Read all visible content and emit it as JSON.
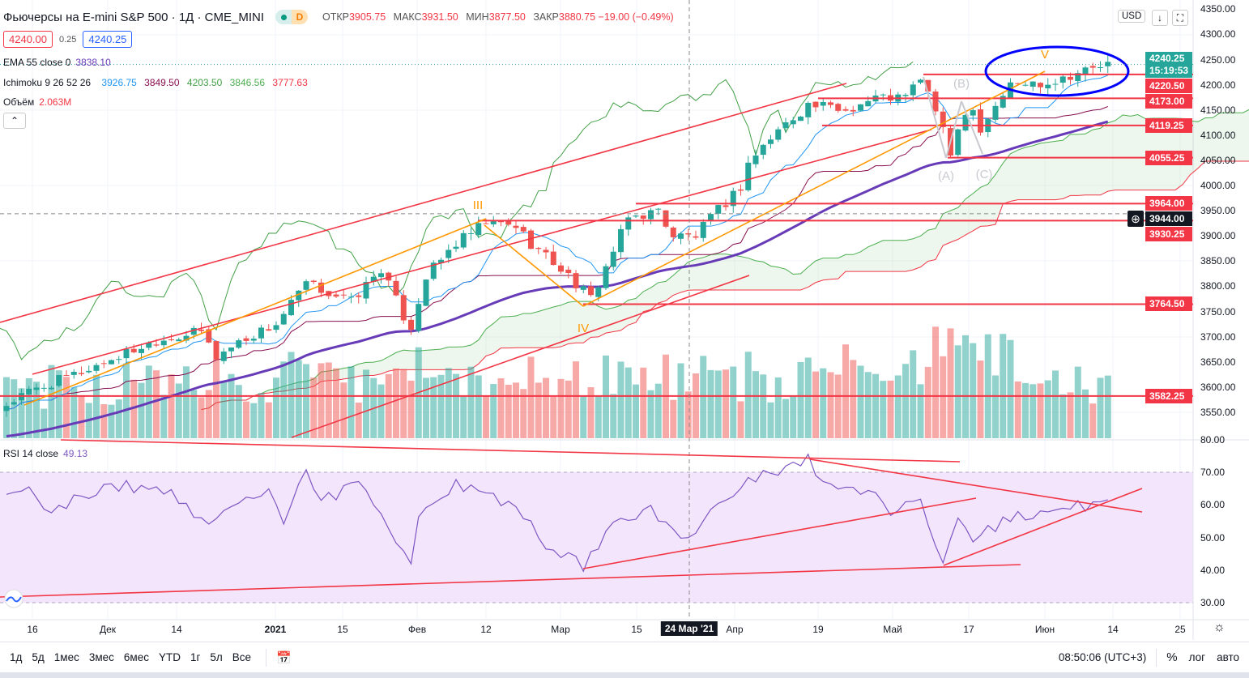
{
  "header": {
    "symbol_title": "Фьючерсы на E-mini S&P 500 · 1Д · CME_MINI",
    "session_badge": "D",
    "ohlc": [
      {
        "label": "ОТКР",
        "value": "3905.75"
      },
      {
        "label": "МАКС",
        "value": "3931.50"
      },
      {
        "label": "МИН",
        "value": "3877.50"
      },
      {
        "label": "ЗАКР",
        "value": "3880.75 −19.00 (−0.49%)"
      }
    ],
    "sell_price": "4240.00",
    "spread": "0.25",
    "buy_price": "4240.25",
    "currency": "USD"
  },
  "indicators": {
    "ema": {
      "label": "EMA 55 close 0",
      "value": "3838.10"
    },
    "ichimoku": {
      "label": "Ichimoku 9 26 52 26",
      "values": [
        "3926.75",
        "3849.50",
        "4203.50",
        "3846.56",
        "3777.63"
      ]
    },
    "volume": {
      "label": "Объём",
      "value": "2.063M"
    },
    "rsi": {
      "label": "RSI 14 close",
      "value": "49.13"
    }
  },
  "colors": {
    "up": "#26a69a",
    "down": "#ef5350",
    "ema": "#673ab7",
    "tenkan": "#2196f3",
    "kijun": "#880e4f",
    "chikou": "#43a047",
    "level": "#f23645",
    "rsi": "#7e57c2",
    "annotation": "#0000ff"
  },
  "price_axis": {
    "ticks": [
      "4350.00",
      "4300.00",
      "4250.00",
      "4200.00",
      "4150.00",
      "4100.00",
      "4050.00",
      "4000.00",
      "3950.00",
      "3900.00",
      "3850.00",
      "3800.00",
      "3750.00",
      "3700.00",
      "3650.00",
      "3600.00",
      "3550.00"
    ],
    "last_price": "4240.25",
    "countdown": "15:19:53",
    "crosshair_price": "3944.00",
    "levels": [
      "4220.50",
      "4173.00",
      "4119.25",
      "4055.25",
      "3964.00",
      "3930.25",
      "3764.50",
      "3582.25"
    ]
  },
  "rsi_axis": {
    "ticks": [
      "80.00",
      "70.00",
      "60.00",
      "50.00",
      "40.00",
      "30.00"
    ]
  },
  "time_axis": {
    "ticks": [
      "16",
      "Дек",
      "14",
      "2021",
      "15",
      "Фев",
      "12",
      "Мар",
      "15",
      "Апр",
      "19",
      "Май",
      "17",
      "Июн",
      "14",
      "25"
    ],
    "crosshair_date": "24 Мар '21"
  },
  "wave_labels": [
    "III",
    "IV",
    "V",
    "(A)",
    "(B)",
    "(C)"
  ],
  "bottom_toolbar": {
    "ranges": [
      "1д",
      "5д",
      "1мес",
      "3мес",
      "6мес",
      "YTD",
      "1г",
      "5л",
      "Все"
    ],
    "clock": "08:50:06 (UTC+3)",
    "percent": "%",
    "log": "лог",
    "auto": "авто"
  },
  "chart_data": {
    "type": "candlestick",
    "title": "Фьючерсы на E-mini S&P 500 · 1Д · CME_MINI",
    "ylim": [
      3520,
      4360
    ],
    "candle_count": 148,
    "close_waypoints": [
      [
        0,
        3565
      ],
      [
        3,
        3590
      ],
      [
        10,
        3630
      ],
      [
        20,
        3693
      ],
      [
        26,
        3710
      ],
      [
        28,
        3660
      ],
      [
        31,
        3690
      ],
      [
        36,
        3725
      ],
      [
        40,
        3805
      ],
      [
        46,
        3770
      ],
      [
        50,
        3835
      ],
      [
        53,
        3740
      ],
      [
        54,
        3720
      ],
      [
        56,
        3820
      ],
      [
        60,
        3885
      ],
      [
        64,
        3925
      ],
      [
        68,
        3920
      ],
      [
        70,
        3885
      ],
      [
        74,
        3835
      ],
      [
        77,
        3790
      ],
      [
        78,
        3775
      ],
      [
        81,
        3870
      ],
      [
        83,
        3935
      ],
      [
        87,
        3950
      ],
      [
        89,
        3900
      ],
      [
        92,
        3900
      ],
      [
        94,
        3935
      ],
      [
        98,
        3998
      ],
      [
        99,
        4045
      ],
      [
        103,
        4110
      ],
      [
        107,
        4160
      ],
      [
        112,
        4150
      ],
      [
        116,
        4175
      ],
      [
        120,
        4175
      ],
      [
        122,
        4215
      ],
      [
        124,
        4150
      ],
      [
        126,
        4060
      ],
      [
        127,
        4120
      ],
      [
        129,
        4160
      ],
      [
        130,
        4110
      ],
      [
        132,
        4160
      ],
      [
        134,
        4200
      ],
      [
        139,
        4205
      ],
      [
        143,
        4225
      ],
      [
        147,
        4240
      ]
    ],
    "rsi": {
      "ylim": [
        25,
        82
      ],
      "overbought": 70,
      "oversold": 30,
      "waypoints": [
        [
          0,
          63
        ],
        [
          3,
          66
        ],
        [
          6,
          58
        ],
        [
          13,
          66
        ],
        [
          21,
          65
        ],
        [
          27,
          54
        ],
        [
          35,
          66
        ],
        [
          37,
          56
        ],
        [
          40,
          70
        ],
        [
          42,
          61
        ],
        [
          47,
          67
        ],
        [
          52,
          48
        ],
        [
          54,
          43
        ],
        [
          55,
          58
        ],
        [
          60,
          66
        ],
        [
          64,
          65
        ],
        [
          68,
          58
        ],
        [
          73,
          46
        ],
        [
          77,
          41
        ],
        [
          81,
          53
        ],
        [
          86,
          58
        ],
        [
          91,
          50
        ],
        [
          94,
          58
        ],
        [
          97,
          61
        ],
        [
          99,
          68
        ],
        [
          106,
          73
        ],
        [
          107,
          74
        ],
        [
          110,
          65
        ],
        [
          112,
          66
        ],
        [
          116,
          64
        ],
        [
          118,
          58
        ],
        [
          122,
          61
        ],
        [
          125,
          42
        ],
        [
          127,
          55
        ],
        [
          129,
          48
        ],
        [
          131,
          52
        ],
        [
          134,
          56
        ],
        [
          139,
          58
        ],
        [
          142,
          60
        ],
        [
          144,
          59
        ],
        [
          147,
          62
        ]
      ]
    }
  }
}
